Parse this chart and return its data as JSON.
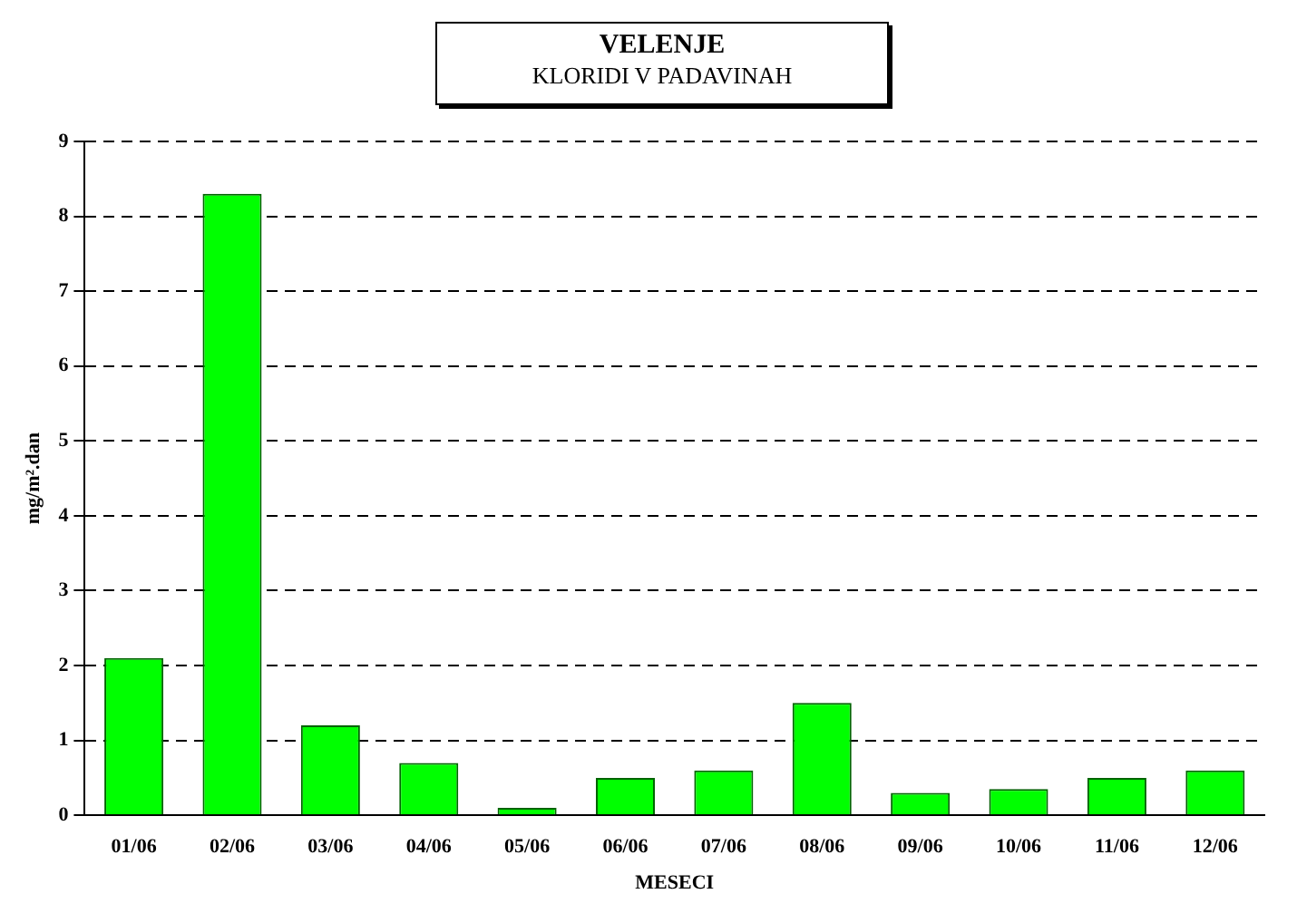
{
  "chart_data": {
    "type": "bar",
    "title": "VELENJE",
    "subtitle": "KLORIDI V PADAVINAH",
    "xlabel": "MESECI",
    "ylabel": "mg/m².dan",
    "categories": [
      "01/06",
      "02/06",
      "03/06",
      "04/06",
      "05/06",
      "06/06",
      "07/06",
      "08/06",
      "09/06",
      "10/06",
      "11/06",
      "12/06"
    ],
    "values": [
      2.1,
      8.3,
      1.2,
      0.7,
      0.1,
      0.5,
      0.6,
      1.5,
      0.3,
      0.35,
      0.5,
      0.6
    ],
    "color": "#00ff00",
    "ylim": [
      0,
      9
    ],
    "yticks": [
      0,
      1,
      2,
      3,
      4,
      5,
      6,
      7,
      8,
      9
    ],
    "grid": "y"
  }
}
